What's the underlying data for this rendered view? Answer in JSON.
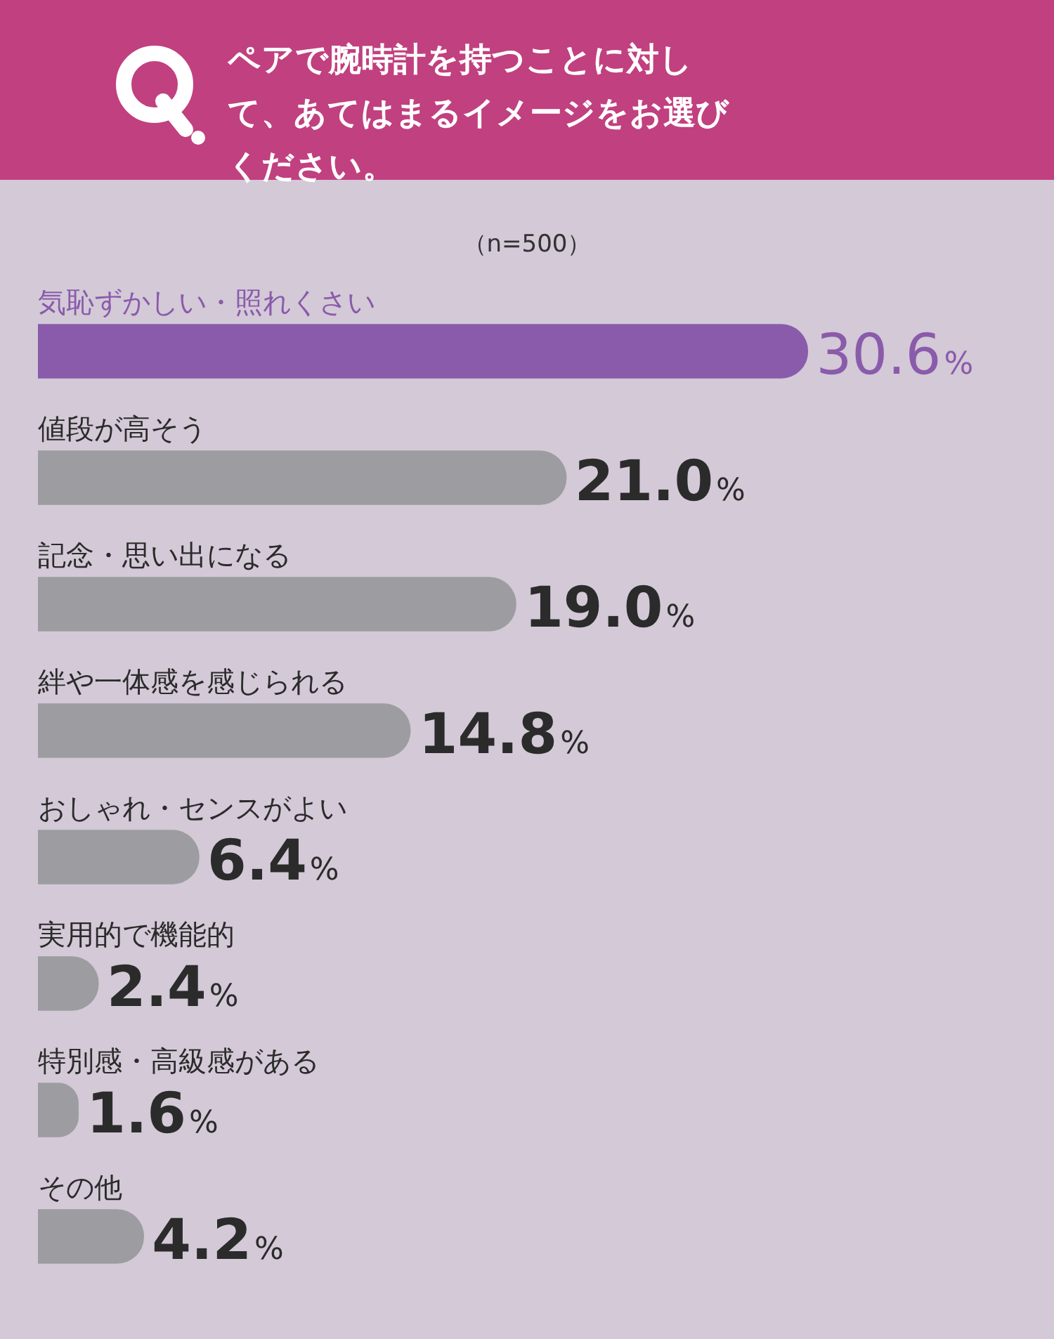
{
  "chart_data": {
    "type": "bar",
    "orientation": "horizontal",
    "title": "ペアで腕時計を持つことに対して、あてはまるイメージをお選びください。",
    "subtitle": "（n=500）",
    "categories": [
      "気恥ずかしい・照れくさい",
      "値段が高そう",
      "記念・思い出になる",
      "絆や一体感を感じられる",
      "おしゃれ・センスがよい",
      "実用的で機能的",
      "特別感・高級感がある",
      "その他"
    ],
    "values": [
      30.6,
      21.0,
      19.0,
      14.8,
      6.4,
      2.4,
      1.6,
      4.2
    ],
    "value_labels": [
      "30.6%",
      "21.0%",
      "19.0%",
      "14.8%",
      "6.4%",
      "2.4%",
      "1.6%",
      "4.2%"
    ],
    "colors": [
      "#8a5bab",
      "#9d9da1",
      "#9d9da1",
      "#9d9da1",
      "#9d9da1",
      "#9d9da1",
      "#9d9da1",
      "#9d9da1"
    ],
    "legend": false
  }
}
